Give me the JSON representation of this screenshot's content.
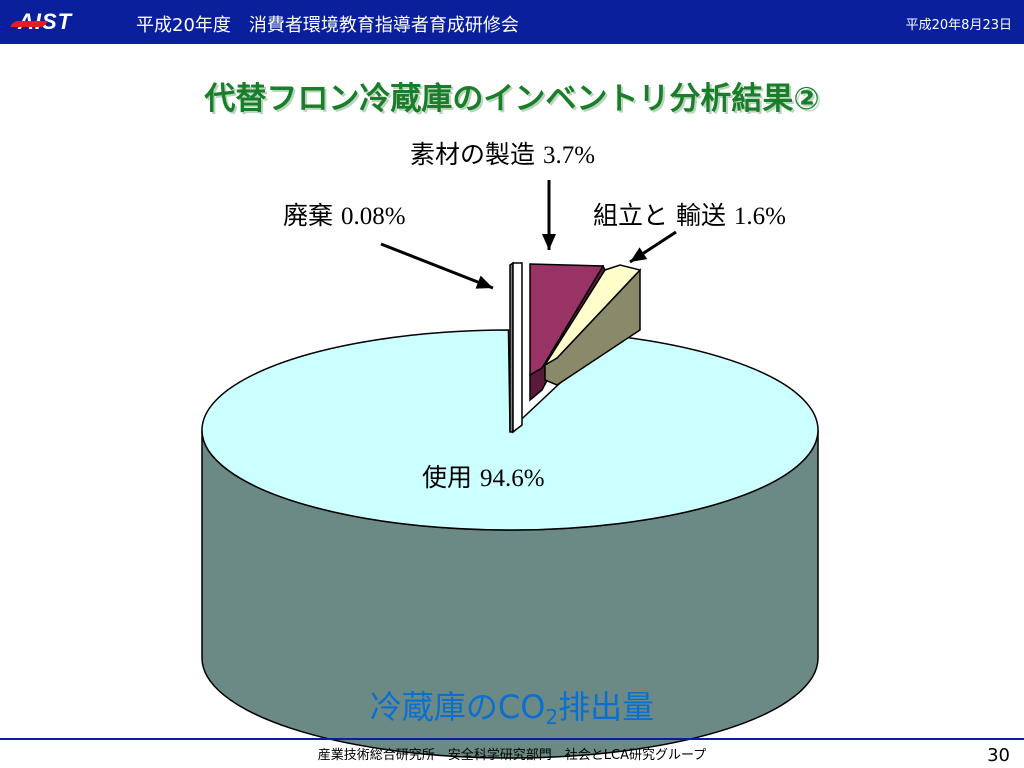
{
  "header": {
    "logo": "AIST",
    "title": "平成20年度　消費者環境教育指導者育成研修会",
    "date": "平成20年8月23日"
  },
  "slide": {
    "title": "代替フロン冷蔵庫のインベントリ分析結果②",
    "caption_prefix": "冷蔵庫のCO",
    "caption_sub": "2",
    "caption_suffix": "排出量"
  },
  "footer": {
    "org": "産業技術総合研究所　安全科学研究部門　社会とLCA研究グループ",
    "page": "30"
  },
  "chart_data": {
    "type": "pie",
    "title": "",
    "slices": [
      {
        "label": "使用",
        "value_text": "94.6%",
        "value": 94.6,
        "color": "#ccffff",
        "side_color": "#6b8a86"
      },
      {
        "label": "素材の製造",
        "value_text": "3.7%",
        "value": 3.7,
        "color": "#993366",
        "side_color": "#5c1a3a"
      },
      {
        "label": "組立と 輸送",
        "value_text": "1.6%",
        "value": 1.6,
        "color": "#ffffcc",
        "side_color": "#8a8a6a"
      },
      {
        "label": "廃棄",
        "value_text": "0.08%",
        "value": 0.08,
        "color": "#ffffff",
        "side_color": "#808080"
      }
    ]
  }
}
